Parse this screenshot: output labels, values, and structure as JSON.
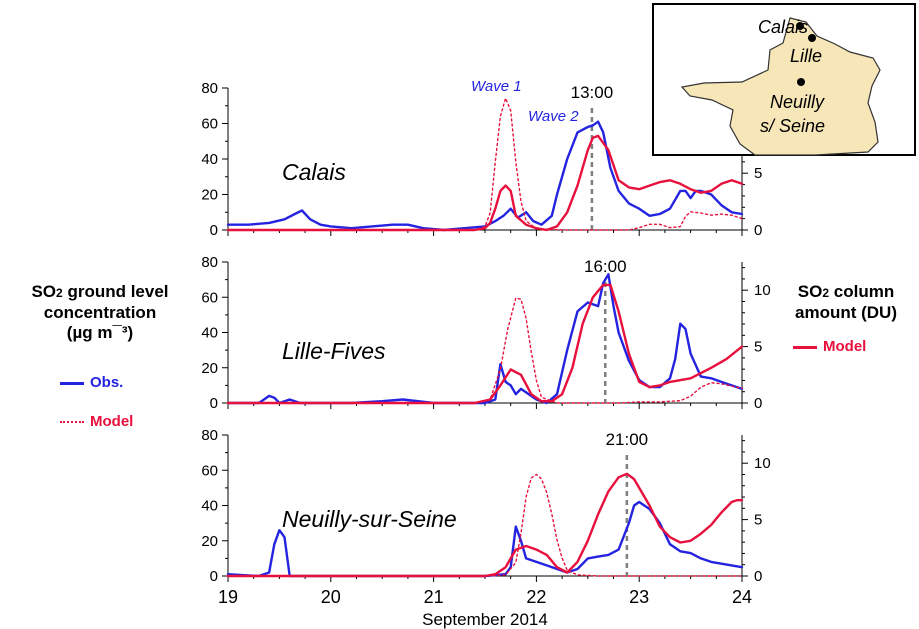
{
  "colors": {
    "obs": "#2424e0",
    "model": "#e8103c",
    "wave": "#2424e0",
    "map_fill": "#f6e6b8",
    "marker_line": "#7f7f7f"
  },
  "left_axis": {
    "line1": "SO",
    "sub": "2",
    "line1b": " ground level",
    "line2": "concentration",
    "line3": "(µg m¯³)"
  },
  "right_axis": {
    "line1": "SO",
    "sub": "2",
    "line1b": " column",
    "line2": "amount (DU)"
  },
  "legend_left": {
    "obs": "Obs.",
    "model": "Model"
  },
  "legend_right": {
    "model": "Model"
  },
  "x_axis": {
    "title": "September 2014",
    "ticks": [
      "19",
      "20",
      "21",
      "22",
      "23",
      "24"
    ]
  },
  "annotations": {
    "wave1": "Wave 1",
    "wave2": "Wave 2"
  },
  "map": {
    "cities": [
      "Calais",
      "Lille",
      "Neuilly",
      "s/ Seine"
    ]
  },
  "chart_data": [
    {
      "type": "line",
      "title": "Calais",
      "x_unit": "day of September 2014",
      "xlim": [
        19,
        24
      ],
      "ylim_left": [
        0,
        80
      ],
      "yticks_left": [
        "0",
        "20",
        "40",
        "60",
        "80"
      ],
      "ylim_right": [
        0,
        12.5
      ],
      "yticks_right": [
        "0",
        "5"
      ],
      "time_marker": {
        "label": "13:00",
        "x": 22.54
      },
      "series": [
        {
          "name": "Obs.",
          "axis": "left",
          "style": "solid",
          "x": [
            19.0,
            19.2,
            19.4,
            19.55,
            19.65,
            19.72,
            19.8,
            19.9,
            20.0,
            20.2,
            20.4,
            20.6,
            20.75,
            20.9,
            21.1,
            21.3,
            21.5,
            21.6,
            21.68,
            21.75,
            21.82,
            21.9,
            21.97,
            22.05,
            22.15,
            22.2,
            22.3,
            22.4,
            22.5,
            22.55,
            22.6,
            22.65,
            22.72,
            22.8,
            22.9,
            23.0,
            23.1,
            23.2,
            23.3,
            23.4,
            23.45,
            23.5,
            23.55,
            23.6,
            23.7,
            23.8,
            23.9,
            24.0
          ],
          "y": [
            3,
            3,
            4,
            6,
            9,
            11,
            6,
            3,
            2,
            1,
            2,
            3,
            3,
            1,
            0,
            1,
            2,
            5,
            8,
            12,
            7,
            10,
            5,
            3,
            8,
            20,
            40,
            55,
            58,
            59,
            61,
            55,
            35,
            22,
            15,
            12,
            8,
            9,
            12,
            22,
            22,
            18,
            22,
            22,
            20,
            14,
            10,
            9
          ]
        },
        {
          "name": "Model",
          "axis": "left",
          "style": "solid",
          "x": [
            19.0,
            20.0,
            21.0,
            21.4,
            21.5,
            21.55,
            21.6,
            21.65,
            21.7,
            21.75,
            21.8,
            21.9,
            22.0,
            22.1,
            22.2,
            22.3,
            22.4,
            22.5,
            22.55,
            22.6,
            22.7,
            22.8,
            22.9,
            23.0,
            23.1,
            23.2,
            23.3,
            23.4,
            23.5,
            23.6,
            23.7,
            23.8,
            23.9,
            24.0
          ],
          "y": [
            0,
            0,
            0,
            0,
            1,
            4,
            12,
            22,
            25,
            22,
            8,
            3,
            1,
            0,
            2,
            10,
            25,
            45,
            52,
            53,
            45,
            28,
            24,
            23,
            25,
            27,
            28,
            26,
            23,
            21,
            22,
            26,
            28,
            26
          ]
        },
        {
          "name": "Model",
          "axis": "right",
          "style": "dotted",
          "x": [
            19.0,
            20.0,
            21.0,
            21.4,
            21.5,
            21.55,
            21.6,
            21.65,
            21.7,
            21.75,
            21.8,
            21.85,
            21.9,
            22.0,
            22.3,
            22.6,
            22.7,
            22.8,
            22.9,
            23.0,
            23.1,
            23.2,
            23.3,
            23.4,
            23.45,
            23.5,
            23.6,
            23.7,
            23.8,
            23.9,
            24.0
          ],
          "y": [
            0,
            0,
            0,
            0,
            0.3,
            1.5,
            6.0,
            10.0,
            11.6,
            10.5,
            6.0,
            2.5,
            0.8,
            0.1,
            0,
            0,
            0,
            0,
            0,
            0.2,
            0.5,
            0.5,
            0.2,
            0.3,
            1.2,
            1.6,
            1.5,
            1.3,
            1.4,
            1.3,
            1.0
          ]
        }
      ]
    },
    {
      "type": "line",
      "title": "Lille-Fives",
      "x_unit": "day of September 2014",
      "xlim": [
        19,
        24
      ],
      "ylim_left": [
        0,
        80
      ],
      "yticks_left": [
        "0",
        "20",
        "40",
        "60",
        "80"
      ],
      "ylim_right": [
        0,
        12.5
      ],
      "yticks_right": [
        "0",
        "5",
        "10"
      ],
      "time_marker": {
        "label": "16:00",
        "x": 22.67
      },
      "series": [
        {
          "name": "Obs.",
          "axis": "left",
          "style": "solid",
          "x": [
            19.0,
            19.3,
            19.35,
            19.4,
            19.45,
            19.5,
            19.6,
            19.7,
            19.8,
            20.0,
            20.2,
            20.5,
            20.7,
            21.0,
            21.3,
            21.5,
            21.6,
            21.65,
            21.7,
            21.75,
            21.8,
            21.85,
            21.9,
            22.0,
            22.1,
            22.2,
            22.3,
            22.4,
            22.5,
            22.6,
            22.65,
            22.7,
            22.75,
            22.8,
            22.9,
            23.0,
            23.1,
            23.2,
            23.3,
            23.35,
            23.4,
            23.45,
            23.5,
            23.6,
            23.7,
            23.8,
            23.9,
            24.0
          ],
          "y": [
            0,
            0,
            2,
            4,
            3,
            0,
            2,
            0,
            0,
            0,
            0,
            1,
            2,
            0,
            0,
            0,
            2,
            22,
            12,
            10,
            5,
            8,
            6,
            2,
            0,
            5,
            30,
            52,
            57,
            55,
            68,
            73,
            55,
            40,
            24,
            13,
            9,
            9,
            14,
            25,
            45,
            42,
            28,
            15,
            14,
            12,
            10,
            8
          ]
        },
        {
          "name": "Model",
          "axis": "left",
          "style": "solid",
          "x": [
            19.0,
            20.0,
            21.0,
            21.4,
            21.55,
            21.65,
            21.75,
            21.85,
            21.95,
            22.05,
            22.15,
            22.25,
            22.35,
            22.45,
            22.55,
            22.65,
            22.72,
            22.8,
            22.9,
            23.0,
            23.1,
            23.2,
            23.3,
            23.5,
            23.7,
            23.85,
            24.0
          ],
          "y": [
            0,
            0,
            0,
            0,
            2,
            10,
            19,
            16,
            5,
            1,
            1,
            5,
            20,
            45,
            60,
            67,
            67,
            52,
            28,
            12,
            9,
            10,
            12,
            14,
            20,
            25,
            32
          ]
        },
        {
          "name": "Model",
          "axis": "right",
          "style": "dotted",
          "x": [
            19.0,
            20.0,
            21.0,
            21.4,
            21.55,
            21.65,
            21.72,
            21.8,
            21.85,
            21.9,
            21.95,
            22.0,
            22.05,
            22.2,
            22.5,
            22.8,
            23.0,
            23.2,
            23.4,
            23.5,
            23.6,
            23.7,
            23.8,
            23.9,
            24.0
          ],
          "y": [
            0,
            0,
            0,
            0,
            0.3,
            3.0,
            6.5,
            9.3,
            9.2,
            7.5,
            4.5,
            2.0,
            0.5,
            0,
            0,
            0,
            0.1,
            0.1,
            0.2,
            0.6,
            1.4,
            1.8,
            1.7,
            1.5,
            1.3
          ]
        }
      ]
    },
    {
      "type": "line",
      "title": "Neuilly-sur-Seine",
      "x_unit": "day of September 2014",
      "xlim": [
        19,
        24
      ],
      "ylim_left": [
        0,
        80
      ],
      "yticks_left": [
        "0",
        "20",
        "40",
        "60",
        "80"
      ],
      "ylim_right": [
        0,
        12.5
      ],
      "yticks_right": [
        "0",
        "5",
        "10"
      ],
      "time_marker": {
        "label": "21:00",
        "x": 22.88
      },
      "series": [
        {
          "name": "Obs.",
          "axis": "left",
          "style": "solid",
          "x": [
            19.0,
            19.3,
            19.4,
            19.45,
            19.5,
            19.55,
            19.6,
            19.7,
            20.0,
            21.0,
            21.5,
            21.7,
            21.75,
            21.8,
            21.85,
            21.9,
            22.0,
            22.1,
            22.2,
            22.3,
            22.4,
            22.5,
            22.6,
            22.7,
            22.8,
            22.9,
            22.95,
            23.0,
            23.1,
            23.2,
            23.3,
            23.4,
            23.5,
            23.6,
            23.7,
            23.8,
            23.9,
            24.0
          ],
          "y": [
            1,
            0,
            2,
            18,
            26,
            22,
            0,
            0,
            0,
            0,
            0,
            1,
            5,
            28,
            20,
            10,
            8,
            6,
            4,
            2,
            4,
            10,
            11,
            12,
            15,
            30,
            40,
            42,
            38,
            30,
            18,
            14,
            13,
            10,
            8,
            7,
            6,
            5
          ]
        },
        {
          "name": "Model",
          "axis": "left",
          "style": "solid",
          "x": [
            19.0,
            20.0,
            21.0,
            21.5,
            21.6,
            21.7,
            21.8,
            21.9,
            22.0,
            22.1,
            22.2,
            22.3,
            22.4,
            22.5,
            22.6,
            22.7,
            22.8,
            22.88,
            22.95,
            23.0,
            23.1,
            23.2,
            23.3,
            23.4,
            23.5,
            23.6,
            23.7,
            23.8,
            23.9,
            23.95,
            24.0
          ],
          "y": [
            0,
            0,
            0,
            0,
            1,
            5,
            15,
            17,
            15,
            12,
            5,
            2,
            8,
            20,
            35,
            48,
            56,
            58,
            55,
            50,
            40,
            28,
            22,
            19,
            20,
            24,
            29,
            36,
            42,
            43,
            43
          ]
        },
        {
          "name": "Model",
          "axis": "right",
          "style": "dotted",
          "x": [
            19.0,
            20.0,
            21.0,
            21.5,
            21.7,
            21.8,
            21.85,
            21.9,
            21.95,
            22.0,
            22.05,
            22.1,
            22.15,
            22.2,
            22.25,
            22.3,
            22.4,
            22.6,
            23.0,
            23.5,
            24.0
          ],
          "y": [
            0,
            0,
            0,
            0,
            0.1,
            1.2,
            3.8,
            7.0,
            8.7,
            9.0,
            8.6,
            7.4,
            5.5,
            3.2,
            1.6,
            0.5,
            0.1,
            0,
            0,
            0,
            0
          ]
        }
      ]
    }
  ]
}
